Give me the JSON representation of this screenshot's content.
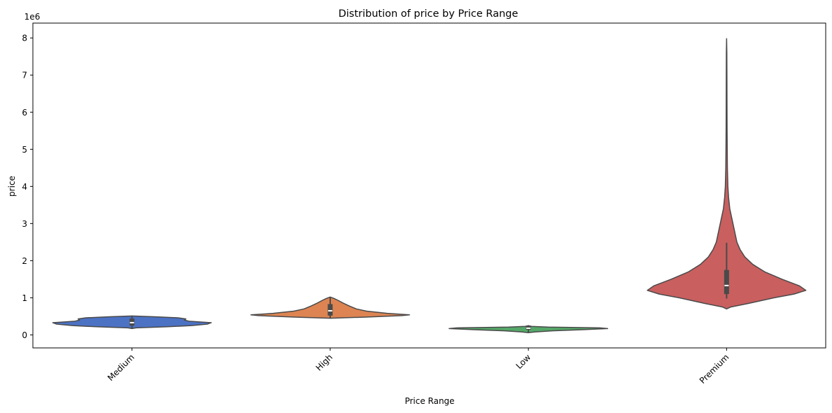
{
  "chart_data": {
    "type": "violin",
    "title": "Distribution of price by Price Range",
    "xlabel": "Price Range",
    "ylabel": "price",
    "y_scale_label": "1e6",
    "ylim": [
      -0.35,
      8.4
    ],
    "y_ticks": [
      0,
      1,
      2,
      3,
      4,
      5,
      6,
      7,
      8
    ],
    "grid": false,
    "x_tick_rotation": 45,
    "categories": [
      "Medium",
      "High",
      "Low",
      "Premium"
    ],
    "colors": [
      "#4c72c4",
      "#dd8452",
      "#55a868",
      "#c95f5f"
    ],
    "outline_color": "#4a4a4a",
    "series": [
      {
        "category": "Medium",
        "min": 0.17,
        "q1": 0.25,
        "median": 0.33,
        "q3": 0.44,
        "max": 0.51,
        "density": [
          [
            0.17,
            0.0
          ],
          [
            0.19,
            0.05
          ],
          [
            0.22,
            0.45
          ],
          [
            0.25,
            0.75
          ],
          [
            0.29,
            0.95
          ],
          [
            0.33,
            1.0
          ],
          [
            0.37,
            0.72
          ],
          [
            0.4,
            0.66
          ],
          [
            0.43,
            0.68
          ],
          [
            0.46,
            0.58
          ],
          [
            0.49,
            0.28
          ],
          [
            0.51,
            0.0
          ]
        ]
      },
      {
        "category": "High",
        "min": 0.45,
        "q1": 0.52,
        "median": 0.65,
        "q3": 0.83,
        "max": 1.02,
        "density": [
          [
            0.45,
            0.0
          ],
          [
            0.48,
            0.45
          ],
          [
            0.52,
            0.9
          ],
          [
            0.54,
            1.0
          ],
          [
            0.58,
            0.72
          ],
          [
            0.64,
            0.46
          ],
          [
            0.7,
            0.33
          ],
          [
            0.78,
            0.24
          ],
          [
            0.86,
            0.16
          ],
          [
            0.93,
            0.1
          ],
          [
            0.98,
            0.05
          ],
          [
            1.02,
            0.0
          ]
        ]
      },
      {
        "category": "Low",
        "min": 0.06,
        "q1": 0.14,
        "median": 0.18,
        "q3": 0.24,
        "max": 0.25,
        "density": [
          [
            0.06,
            0.0
          ],
          [
            0.08,
            0.08
          ],
          [
            0.11,
            0.3
          ],
          [
            0.14,
            0.68
          ],
          [
            0.17,
            1.0
          ],
          [
            0.19,
            0.9
          ],
          [
            0.21,
            0.25
          ],
          [
            0.23,
            0.04
          ],
          [
            0.25,
            0.0
          ]
        ]
      },
      {
        "category": "Premium",
        "min": 0.98,
        "q1": 1.1,
        "median": 1.33,
        "q3": 1.75,
        "max": 2.48,
        "density": [
          [
            0.7,
            0.0
          ],
          [
            0.75,
            0.05
          ],
          [
            0.85,
            0.28
          ],
          [
            1.0,
            0.6
          ],
          [
            1.1,
            0.85
          ],
          [
            1.2,
            1.0
          ],
          [
            1.32,
            0.92
          ],
          [
            1.5,
            0.7
          ],
          [
            1.7,
            0.48
          ],
          [
            1.9,
            0.33
          ],
          [
            2.1,
            0.23
          ],
          [
            2.3,
            0.17
          ],
          [
            2.5,
            0.13
          ],
          [
            2.7,
            0.11
          ],
          [
            2.9,
            0.09
          ],
          [
            3.1,
            0.07
          ],
          [
            3.4,
            0.04
          ],
          [
            3.7,
            0.025
          ],
          [
            4.0,
            0.016
          ],
          [
            4.5,
            0.01
          ],
          [
            5.0,
            0.008
          ],
          [
            5.6,
            0.006
          ],
          [
            6.2,
            0.005
          ],
          [
            7.0,
            0.004
          ],
          [
            7.6,
            0.003
          ],
          [
            7.98,
            0.0
          ]
        ]
      }
    ]
  }
}
